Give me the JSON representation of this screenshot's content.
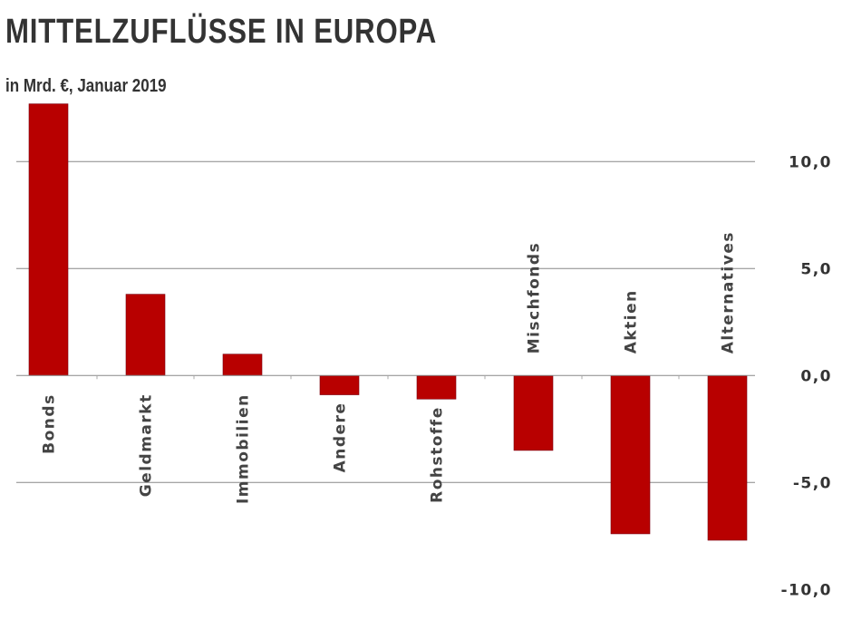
{
  "chart_data": {
    "type": "bar",
    "title": "MITTELZUFLÜSSE IN EUROPA",
    "subtitle": "in Mrd. €, Januar 2019",
    "categories": [
      "Bonds",
      "Geldmarkt",
      "Immobilien",
      "Andere",
      "Rohstoffe",
      "Mischfonds",
      "Aktien",
      "Alternatives"
    ],
    "values": [
      12.7,
      3.8,
      1.0,
      -0.9,
      -1.1,
      -3.5,
      -7.4,
      -7.7
    ],
    "ylim": [
      -10,
      10
    ],
    "yticks": [
      10,
      5,
      0,
      -5,
      -10
    ],
    "ytick_labels": [
      "10,0",
      "5,0",
      "0,0",
      "-5,0",
      "-10,0"
    ],
    "y_axis_side": "right",
    "grid": true,
    "bar_color": "#b80000",
    "legend": "none"
  }
}
